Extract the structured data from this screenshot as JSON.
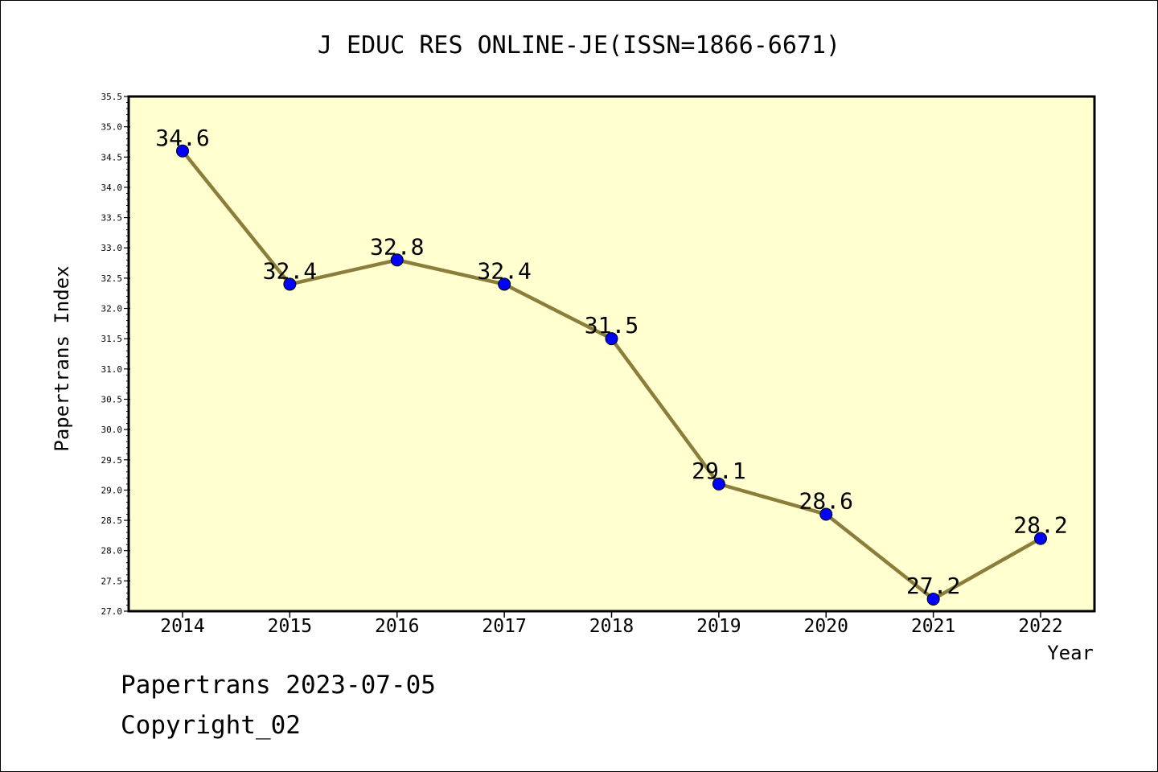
{
  "chart_data": {
    "type": "line",
    "title": "J EDUC RES ONLINE-JE(ISSN=1866-6671)",
    "xlabel": "Year",
    "ylabel": "Papertrans Index",
    "categories": [
      "2014",
      "2015",
      "2016",
      "2017",
      "2018",
      "2019",
      "2020",
      "2021",
      "2022"
    ],
    "series": [
      {
        "values": [
          34.6,
          32.4,
          32.8,
          32.4,
          31.5,
          29.1,
          28.6,
          27.2,
          28.2
        ],
        "point_labels": [
          "34.6",
          "32.4",
          "32.8",
          "32.4",
          "31.5",
          "29.1",
          "28.6",
          "27.2",
          "28.2"
        ]
      }
    ],
    "ylim": [
      27.0,
      35.5
    ],
    "yticks": [
      "27.0",
      "27.5",
      "28.0",
      "28.5",
      "29.0",
      "29.5",
      "30.0",
      "30.5",
      "31.0",
      "31.5",
      "32.0",
      "32.5",
      "33.0",
      "33.5",
      "34.0",
      "34.5",
      "35.0",
      "35.5"
    ],
    "grid": false,
    "legend": "none",
    "colors": {
      "plot_background": "#ffffd0",
      "line": "#8b7d3a",
      "marker": "#0000ff"
    }
  },
  "footer": {
    "source_date": "Papertrans 2023-07-05",
    "copyright": "Copyright_02"
  }
}
